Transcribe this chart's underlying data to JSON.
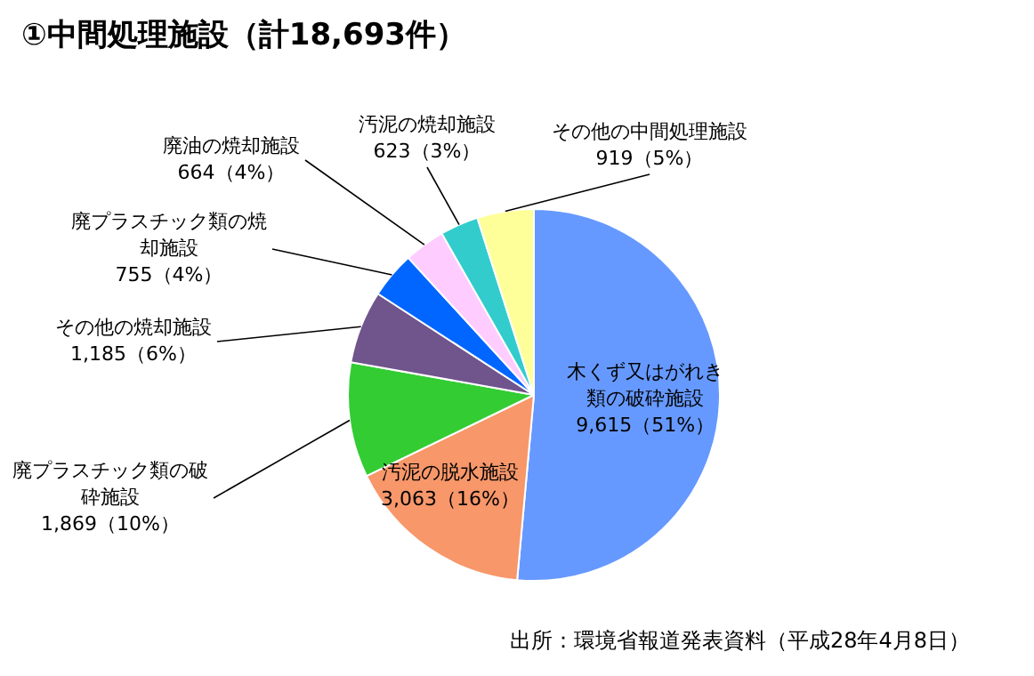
{
  "chart_data": {
    "type": "pie",
    "title": "①中間処理施設（計18,693件）",
    "categories": [
      "木くず又はがれき類の破砕施設",
      "汚泥の脱水施設",
      "廃プラスチック類の破砕施設",
      "その他の焼却施設",
      "廃プラスチック類の焼却施設",
      "廃油の焼却施設",
      "汚泥の焼却施設",
      "その他の中間処理施設"
    ],
    "values": [
      9615,
      3063,
      1869,
      1185,
      755,
      664,
      623,
      919
    ],
    "value_labels": [
      "9,615（51%）",
      "3,063（16%）",
      "1,869（10%）",
      "1,185（6%）",
      "755（4%）",
      "664（4%）",
      "623（3%）",
      "919（5%）"
    ],
    "colors": [
      "#6699ff",
      "#f7976a",
      "#33cc33",
      "#70548c",
      "#0066ff",
      "#ffccff",
      "#33cccc",
      "#ffff99"
    ],
    "annotations": [
      "出所：環境省報道発表資料（平成28年4月8日）"
    ],
    "legend": false
  }
}
